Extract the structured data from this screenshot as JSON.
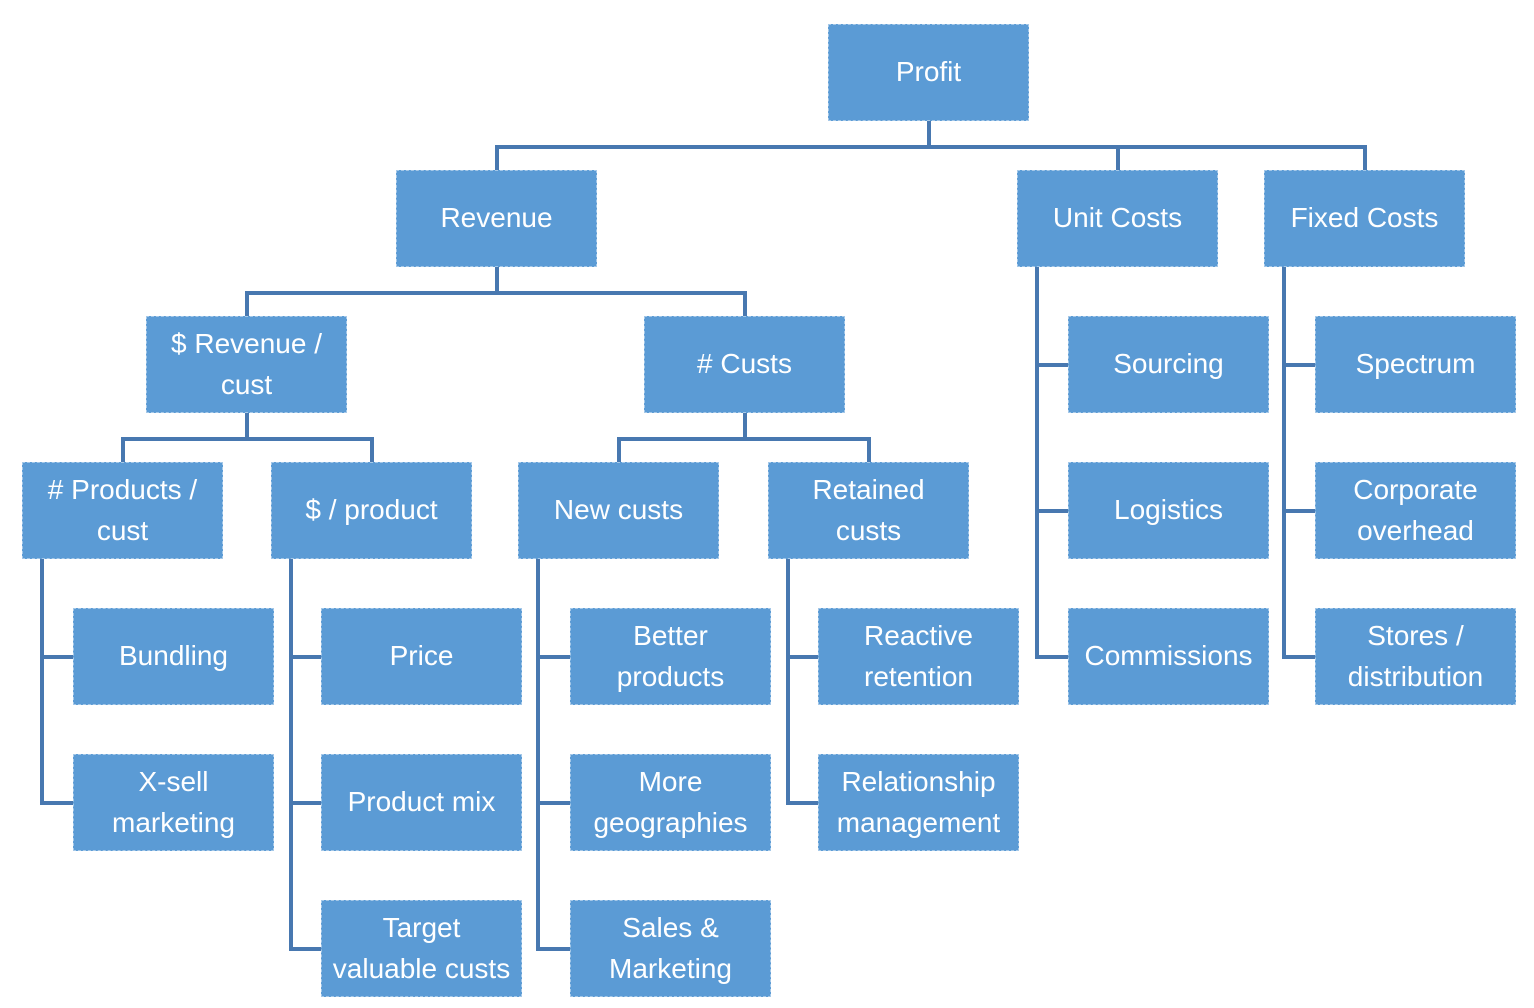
{
  "colors": {
    "box_fill": "#5B9BD5",
    "box_border": "rgba(255,255,255,0.45)",
    "connector": "#4878B0",
    "text": "#FFFFFF",
    "background": "#FFFFFF"
  },
  "diagram": {
    "type": "tree",
    "root_label": "Profit",
    "nodes": [
      {
        "id": "profit",
        "label": "Profit",
        "parent": null
      },
      {
        "id": "revenue",
        "label": "Revenue",
        "parent": "profit"
      },
      {
        "id": "unit-costs",
        "label": "Unit Costs",
        "parent": "profit"
      },
      {
        "id": "fixed-costs",
        "label": "Fixed Costs",
        "parent": "profit"
      },
      {
        "id": "rev-per-cust",
        "label": "$ Revenue /\ncust",
        "parent": "revenue"
      },
      {
        "id": "num-custs",
        "label": "# Custs",
        "parent": "revenue"
      },
      {
        "id": "products-per-cust",
        "label": "# Products /\ncust",
        "parent": "rev-per-cust"
      },
      {
        "id": "dollar-per-product",
        "label": "$ / product",
        "parent": "rev-per-cust"
      },
      {
        "id": "new-custs",
        "label": "New custs",
        "parent": "num-custs"
      },
      {
        "id": "retained-custs",
        "label": "Retained\ncusts",
        "parent": "num-custs"
      },
      {
        "id": "bundling",
        "label": "Bundling",
        "parent": "products-per-cust"
      },
      {
        "id": "x-sell-marketing",
        "label": "X-sell\nmarketing",
        "parent": "products-per-cust"
      },
      {
        "id": "price",
        "label": "Price",
        "parent": "dollar-per-product"
      },
      {
        "id": "product-mix",
        "label": "Product mix",
        "parent": "dollar-per-product"
      },
      {
        "id": "target-valuable-custs",
        "label": "Target\nvaluable custs",
        "parent": "dollar-per-product"
      },
      {
        "id": "better-products",
        "label": "Better\nproducts",
        "parent": "new-custs"
      },
      {
        "id": "more-geographies",
        "label": "More\ngeographies",
        "parent": "new-custs"
      },
      {
        "id": "sales-marketing",
        "label": "Sales &\nMarketing",
        "parent": "new-custs"
      },
      {
        "id": "reactive-retention",
        "label": "Reactive\nretention",
        "parent": "retained-custs"
      },
      {
        "id": "relationship-management",
        "label": "Relationship\nmanagement",
        "parent": "retained-custs"
      },
      {
        "id": "sourcing",
        "label": "Sourcing",
        "parent": "unit-costs"
      },
      {
        "id": "logistics",
        "label": "Logistics",
        "parent": "unit-costs"
      },
      {
        "id": "commissions",
        "label": "Commissions",
        "parent": "unit-costs"
      },
      {
        "id": "spectrum",
        "label": "Spectrum",
        "parent": "fixed-costs"
      },
      {
        "id": "corporate-overhead",
        "label": "Corporate\noverhead",
        "parent": "fixed-costs"
      },
      {
        "id": "stores-distribution",
        "label": "Stores /\ndistribution",
        "parent": "fixed-costs"
      }
    ]
  }
}
